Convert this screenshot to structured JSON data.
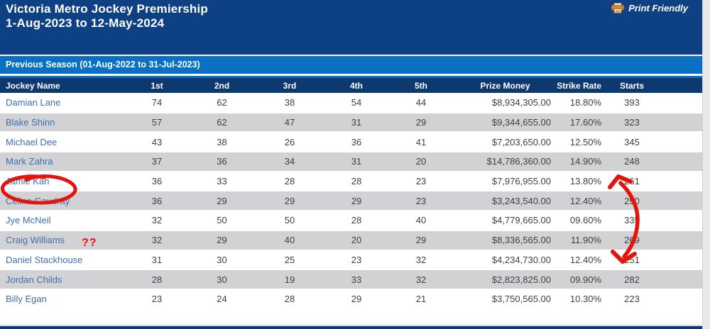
{
  "header": {
    "title_line1": "Victoria Metro Jockey Premiership",
    "title_line2": "1-Aug-2023 to 12-May-2024",
    "print_friendly_label": "Print Friendly",
    "print_icon": "printer-icon"
  },
  "season_bar": {
    "label": "Previous Season (01-Aug-2022 to 31-Jul-2023)"
  },
  "table": {
    "columns": [
      "Jockey Name",
      "1st",
      "2nd",
      "3rd",
      "4th",
      "5th",
      "Prize Money",
      "Strike Rate",
      "Starts"
    ],
    "rows": [
      {
        "name": "Damian Lane",
        "values": [
          "74",
          "62",
          "38",
          "54",
          "44",
          "$8,934,305.00",
          "18.80%",
          "393"
        ]
      },
      {
        "name": "Blake Shinn",
        "values": [
          "57",
          "62",
          "47",
          "31",
          "29",
          "$9,344,655.00",
          "17.60%",
          "323"
        ]
      },
      {
        "name": "Michael Dee",
        "values": [
          "43",
          "38",
          "26",
          "36",
          "41",
          "$7,203,650.00",
          "12.50%",
          "345"
        ]
      },
      {
        "name": "Mark Zahra",
        "values": [
          "37",
          "36",
          "34",
          "31",
          "20",
          "$14,786,360.00",
          "14.90%",
          "248"
        ]
      },
      {
        "name": "Jamie Kah",
        "values": [
          "36",
          "33",
          "28",
          "28",
          "23",
          "$7,976,955.00",
          "13.80%",
          "261"
        ]
      },
      {
        "name": "Celine Gaudray",
        "values": [
          "36",
          "29",
          "29",
          "29",
          "23",
          "$3,243,540.00",
          "12.40%",
          "290"
        ]
      },
      {
        "name": "Jye McNeil",
        "values": [
          "32",
          "50",
          "50",
          "28",
          "40",
          "$4,779,665.00",
          "09.60%",
          "335"
        ]
      },
      {
        "name": "Craig Williams",
        "values": [
          "32",
          "29",
          "40",
          "20",
          "29",
          "$8,336,565.00",
          "11.90%",
          "269"
        ]
      },
      {
        "name": "Daniel Stackhouse",
        "values": [
          "31",
          "30",
          "25",
          "23",
          "32",
          "$4,234,730.00",
          "12.40%",
          "251"
        ]
      },
      {
        "name": "Jordan Childs",
        "values": [
          "28",
          "30",
          "19",
          "33",
          "32",
          "$2,823,825.00",
          "09.90%",
          "282"
        ]
      },
      {
        "name": "Billy Egan",
        "values": [
          "23",
          "24",
          "28",
          "29",
          "21",
          "$3,750,565.00",
          "10.30%",
          "223"
        ]
      }
    ]
  },
  "annotations": {
    "question_marks": "??",
    "circle_icon": "red-circle-annotation",
    "arrow_icon": "red-double-arrow-annotation",
    "annotation_color": "#e51309"
  },
  "colors": {
    "header_navy": "#0d4183",
    "table_header_navy": "#0c3a70",
    "season_blue": "#0a70c4",
    "row_gray": "#d2d2d4",
    "link_blue": "#3e6fae",
    "printer_orange": "#c98a3a"
  }
}
